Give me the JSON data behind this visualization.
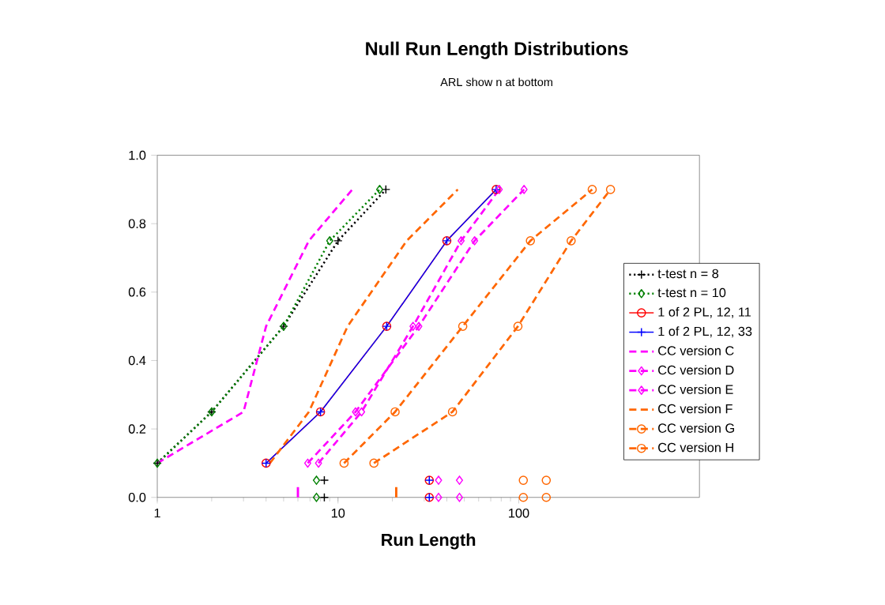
{
  "chart_data": {
    "type": "line",
    "title": "Null Run Length Distributions",
    "subtitle": "ARL show n at bottom",
    "xlabel": "Run Length",
    "log": "x",
    "xlim": [
      1,
      1000
    ],
    "xticks": [
      1,
      10,
      100
    ],
    "ylim": [
      0,
      1
    ],
    "yticks": [
      {
        "value": 0,
        "label": "0.0"
      },
      {
        "value": 0.2,
        "label": "0.2"
      },
      {
        "value": 0.4,
        "label": "0.4"
      },
      {
        "value": 0.6,
        "label": "0.6"
      },
      {
        "value": 0.8,
        "label": "0.8"
      },
      {
        "value": 1,
        "label": "1.0"
      }
    ],
    "grid": false,
    "legend": "right",
    "series": [
      {
        "name": "t-test n = 8",
        "color": "#000000",
        "marker": "cross",
        "line_style": "dotted",
        "x": [
          1,
          2,
          5,
          10,
          18.4
        ],
        "values": [
          0.1,
          0.25,
          0.5,
          0.75,
          0.9
        ]
      },
      {
        "name": "t-test n = 10",
        "color": "#008000",
        "marker": "diamond",
        "line_style": "dotted",
        "x": [
          1,
          2,
          5,
          9,
          17
        ],
        "values": [
          0.1,
          0.25,
          0.5,
          0.75,
          0.9
        ]
      },
      {
        "name": "1 of 2 PL, 12, 11",
        "color": "#ff0000",
        "marker": "circle",
        "line_style": "solid",
        "x": [
          4,
          8,
          18.6,
          40,
          75
        ],
        "values": [
          0.1,
          0.25,
          0.5,
          0.75,
          0.9
        ]
      },
      {
        "name": "1 of 2 PL, 12, 33",
        "color": "#0000ff",
        "marker": "cross",
        "line_style": "solid",
        "x": [
          4,
          8,
          18.6,
          40,
          75
        ],
        "values": [
          0.1,
          0.25,
          0.5,
          0.75,
          0.9
        ]
      },
      {
        "name": "CC version C",
        "color": "#ff00ff",
        "marker": "none",
        "line_style": "dashed",
        "x": [
          1,
          3,
          4,
          6.9,
          12
        ],
        "values": [
          0.1,
          0.25,
          0.5,
          0.75,
          0.9
        ]
      },
      {
        "name": "CC version D",
        "color": "#ff00ff",
        "marker": "diamond",
        "line_style": "dashed",
        "x": [
          6.8,
          12.5,
          28,
          57,
          107
        ],
        "values": [
          0.1,
          0.25,
          0.5,
          0.75,
          0.9
        ]
      },
      {
        "name": "CC version E",
        "color": "#ff00ff",
        "marker": "diamond",
        "line_style": "dashed",
        "x": [
          7.8,
          13.5,
          26,
          48,
          78
        ],
        "values": [
          0.1,
          0.25,
          0.5,
          0.75,
          0.9
        ]
      },
      {
        "name": "CC version F",
        "color": "#ff6600",
        "marker": "none",
        "line_style": "dashed",
        "x": [
          4.2,
          6.9,
          11.3,
          24,
          46
        ],
        "values": [
          0.1,
          0.25,
          0.5,
          0.75,
          0.9
        ]
      },
      {
        "name": "CC version G",
        "color": "#ff6600",
        "marker": "circle",
        "line_style": "dashed",
        "x": [
          10.8,
          20.7,
          49,
          116,
          255
        ],
        "values": [
          0.1,
          0.25,
          0.5,
          0.75,
          0.9
        ]
      },
      {
        "name": "CC version H",
        "color": "#ff6600",
        "marker": "circle",
        "line_style": "dashed",
        "x": [
          15.8,
          43,
          99,
          195,
          322
        ],
        "values": [
          0.1,
          0.25,
          0.5,
          0.75,
          0.9
        ]
      },
      {
        "type": "scatter",
        "color": "#000000",
        "marker": "cross",
        "x": [
          8.4,
          8.4
        ],
        "values": [
          0,
          0.05
        ]
      },
      {
        "type": "scatter",
        "color": "#008000",
        "marker": "diamond",
        "x": [
          7.6,
          7.6
        ],
        "values": [
          0,
          0.05
        ]
      },
      {
        "type": "scatter",
        "color": "#ff0000",
        "marker": "circle",
        "x": [
          32,
          32
        ],
        "values": [
          0,
          0.05
        ]
      },
      {
        "type": "scatter",
        "color": "#0000ff",
        "marker": "cross",
        "x": [
          32,
          32
        ],
        "values": [
          0,
          0.05
        ]
      },
      {
        "type": "bar",
        "color": "#ff00ff",
        "x": [
          6
        ],
        "values": [
          0.03
        ]
      },
      {
        "type": "scatter",
        "color": "#ff00ff",
        "marker": "diamond",
        "x": [
          47,
          47
        ],
        "values": [
          0,
          0.05
        ]
      },
      {
        "type": "scatter",
        "color": "#ff00ff",
        "marker": "diamond",
        "x": [
          36,
          36
        ],
        "values": [
          0,
          0.05
        ]
      },
      {
        "type": "bar",
        "color": "#ff6600",
        "x": [
          21
        ],
        "values": [
          0.03
        ]
      },
      {
        "type": "scatter",
        "color": "#ff6600",
        "marker": "circle",
        "x": [
          106,
          106
        ],
        "values": [
          0,
          0.05
        ]
      },
      {
        "type": "scatter",
        "color": "#ff6600",
        "marker": "circle",
        "x": [
          142,
          142
        ],
        "values": [
          0,
          0.05
        ]
      }
    ]
  }
}
